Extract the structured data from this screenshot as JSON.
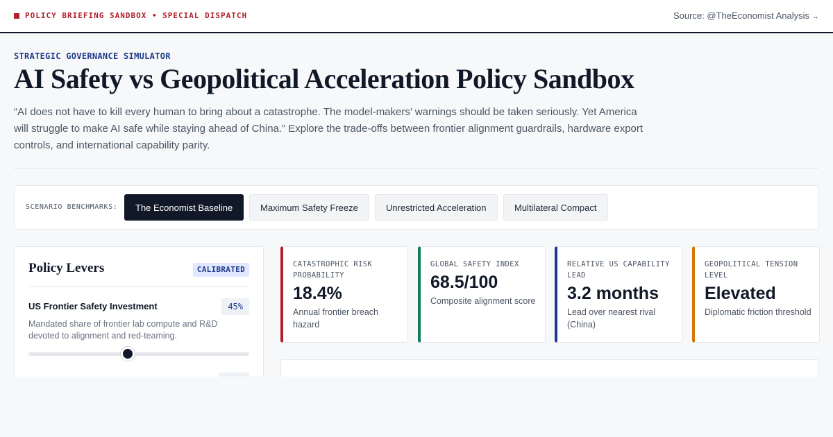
{
  "header": {
    "brand": "POLICY BRIEFING SANDBOX • SPECIAL DISPATCH",
    "source": "Source: @TheEconomist Analysis",
    "source_arrow": "→",
    "brand_color": "#b0202a"
  },
  "hero": {
    "eyebrow": "STRATEGIC GOVERNANCE SIMULATOR",
    "title": "AI Safety vs Geopolitical Acceleration Policy Sandbox",
    "description": "“AI does not have to kill every human to bring about a catastrophe. The model-makers’ warnings should be taken seriously. Yet America will struggle to make AI safe while staying ahead of China.” Explore the trade-offs between frontier alignment guardrails, hardware export controls, and international capability parity."
  },
  "benchmarks": {
    "label": "SCENARIO BENCHMARKS:",
    "options": [
      {
        "label": "The Economist Baseline",
        "active": true
      },
      {
        "label": "Maximum Safety Freeze",
        "active": false
      },
      {
        "label": "Unrestricted Acceleration",
        "active": false
      },
      {
        "label": "Multilateral Compact",
        "active": false
      }
    ]
  },
  "levers": {
    "title": "Policy Levers",
    "badge": "CALIBRATED",
    "items": [
      {
        "label": "US Frontier Safety Investment",
        "value": "45%",
        "level": 0.45,
        "description": "Mandated share of frontier lab compute and R&D devoted to alignment and red-teaming."
      }
    ]
  },
  "kpis": [
    {
      "label": "CATASTROPHIC RISK PROBABILITY",
      "value": "18.4%",
      "sub": "Annual frontier breach hazard",
      "color": "#b0202a"
    },
    {
      "label": "GLOBAL SAFETY INDEX",
      "value": "68.5/100",
      "sub": "Composite alignment score",
      "color": "#0f7b5c"
    },
    {
      "label": "RELATIVE US CAPABILITY LEAD",
      "value": "3.2 months",
      "sub": "Lead over nearest rival (China)",
      "color": "#1e3a8a"
    },
    {
      "label": "GEOPOLITICAL TENSION LEVEL",
      "value": "Elevated",
      "sub": "Diplomatic friction threshold",
      "color": "#d97706"
    }
  ]
}
